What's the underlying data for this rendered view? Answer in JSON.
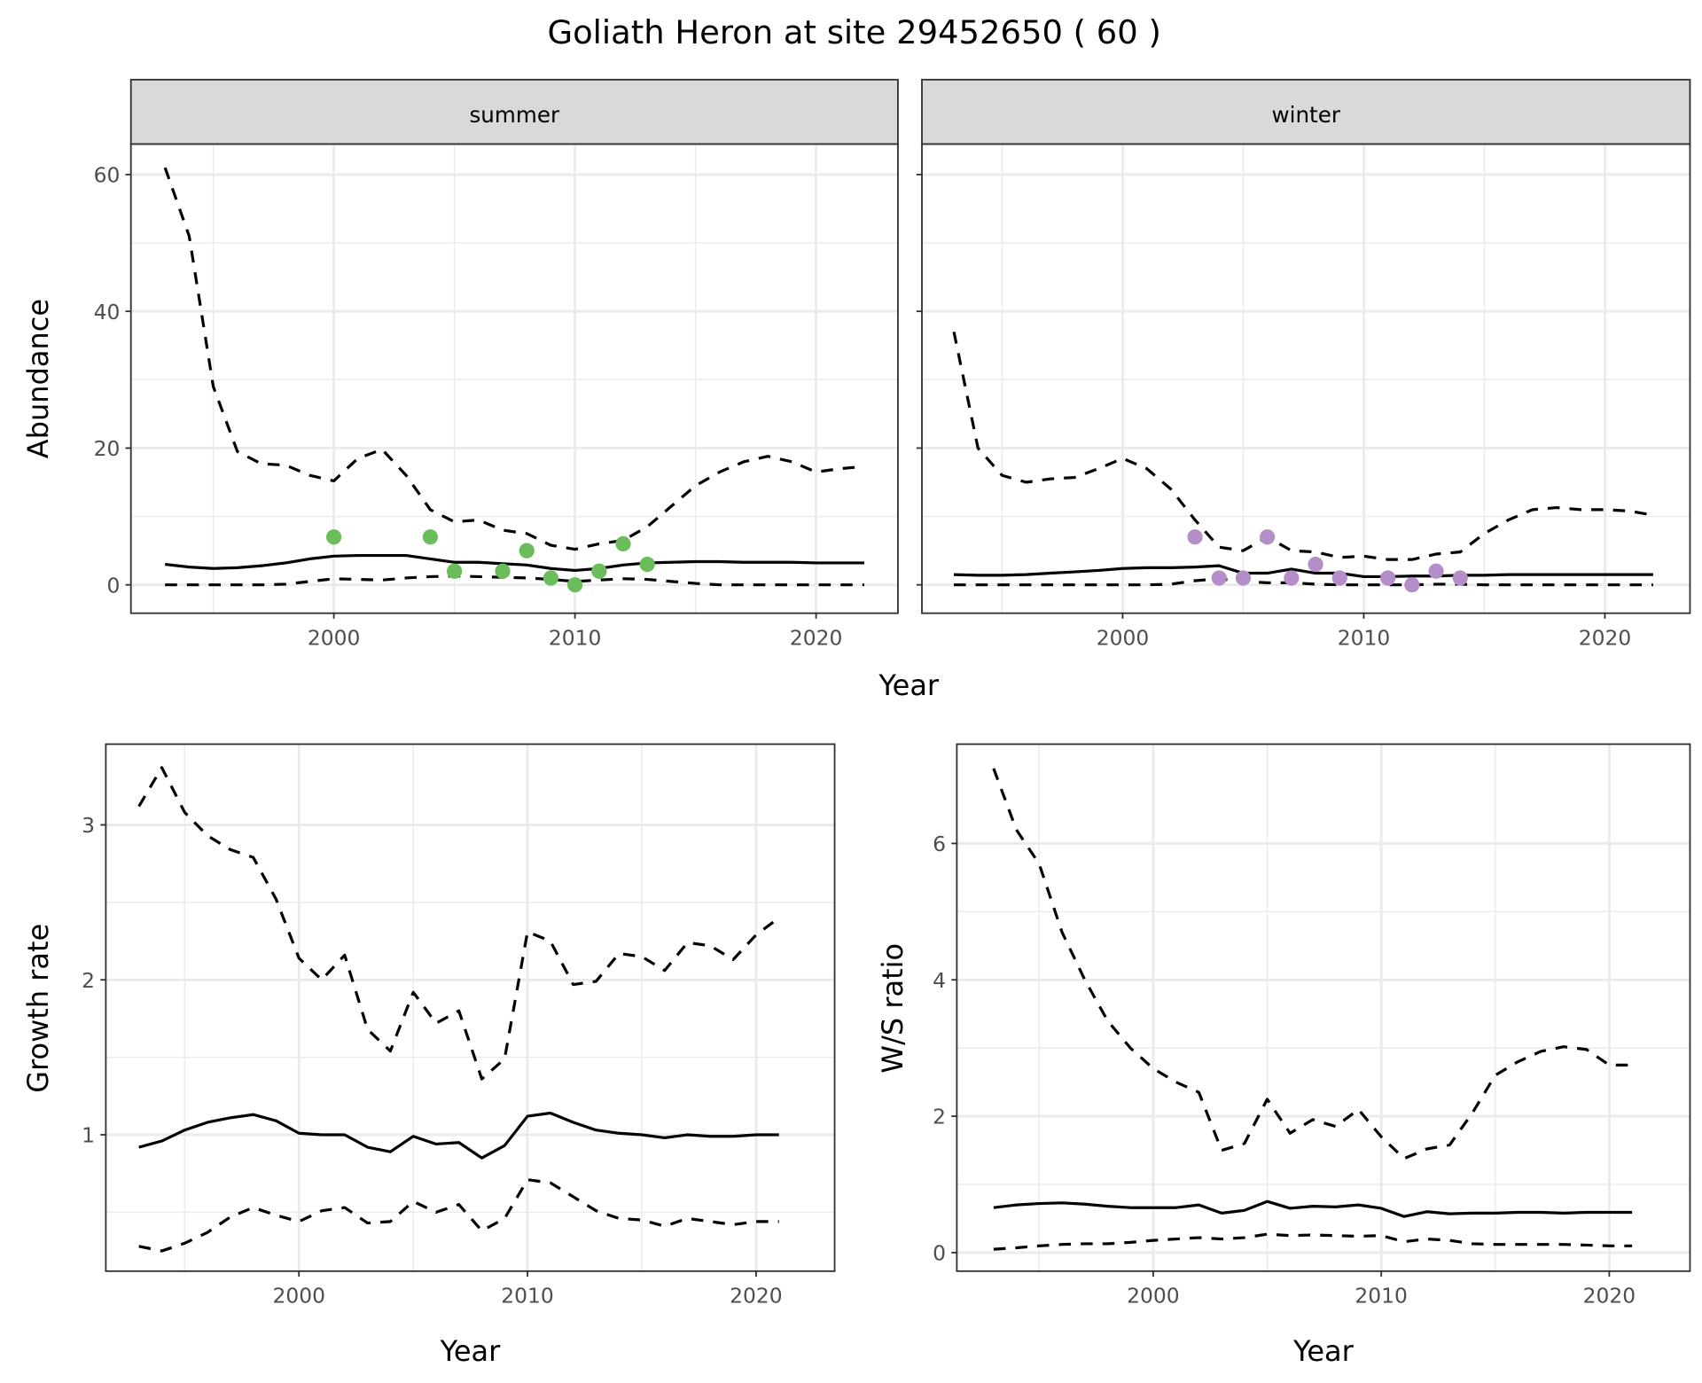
{
  "title": "Goliath Heron at site 29452650 ( 60 )",
  "colors": {
    "summer_points": "#6abd5a",
    "winter_points": "#b48ec8",
    "lines": "#000000",
    "grid": "#ebebeb",
    "strip_bg": "#d9d9d9"
  },
  "chart_data": [
    {
      "type": "line",
      "panel": "summer",
      "strip_label": "summer",
      "xlabel": "Year",
      "ylabel": "Abundance",
      "ylim": [
        0,
        60
      ],
      "xticks": [
        "2000",
        "2010",
        "2020"
      ],
      "yticks": [
        "0",
        "20",
        "40",
        "60"
      ],
      "grid": true,
      "x": [
        1993,
        1994,
        1995,
        1996,
        1997,
        1998,
        1999,
        2000,
        2001,
        2002,
        2003,
        2004,
        2005,
        2006,
        2007,
        2008,
        2009,
        2010,
        2011,
        2012,
        2013,
        2014,
        2015,
        2016,
        2017,
        2018,
        2019,
        2020,
        2021,
        2022
      ],
      "series": [
        {
          "style": "dashed",
          "values": [
            61,
            51,
            29,
            19.5,
            17.7,
            17.5,
            16,
            15.2,
            18.5,
            19.8,
            16,
            11,
            9.2,
            9.5,
            8,
            7.5,
            5.8,
            5.2,
            6,
            6.5,
            8.5,
            11.5,
            14.5,
            16.5,
            18,
            18.8,
            18,
            16.5,
            17,
            17.3
          ]
        },
        {
          "style": "solid",
          "values": [
            3,
            2.6,
            2.4,
            2.5,
            2.8,
            3.2,
            3.8,
            4.2,
            4.3,
            4.3,
            4.3,
            3.8,
            3.3,
            3.3,
            3.1,
            2.9,
            2.4,
            2.1,
            2.4,
            2.9,
            3.2,
            3.3,
            3.4,
            3.4,
            3.3,
            3.3,
            3.3,
            3.2,
            3.2,
            3.2
          ]
        },
        {
          "style": "dashed",
          "values": [
            0,
            0,
            0,
            0,
            0,
            0.1,
            0.5,
            0.9,
            0.8,
            0.7,
            1,
            1.2,
            1.3,
            1.2,
            1.1,
            1,
            0.8,
            0.5,
            0.7,
            0.9,
            0.8,
            0.5,
            0.2,
            0,
            0,
            0,
            0,
            0,
            0,
            0
          ]
        }
      ],
      "points": {
        "x": [
          2000,
          2004,
          2005,
          2007,
          2008,
          2009,
          2010,
          2011,
          2012,
          2013
        ],
        "y": [
          7,
          7,
          2,
          2,
          5,
          1,
          0,
          2,
          6,
          3
        ]
      }
    },
    {
      "type": "line",
      "panel": "winter",
      "strip_label": "winter",
      "xlabel": "Year",
      "ylabel": "Abundance",
      "ylim": [
        0,
        60
      ],
      "xticks": [
        "2000",
        "2010",
        "2020"
      ],
      "grid": true,
      "x": [
        1993,
        1994,
        1995,
        1996,
        1997,
        1998,
        1999,
        2000,
        2001,
        2002,
        2003,
        2004,
        2005,
        2006,
        2007,
        2008,
        2009,
        2010,
        2011,
        2012,
        2013,
        2014,
        2015,
        2016,
        2017,
        2018,
        2019,
        2020,
        2021,
        2022
      ],
      "series": [
        {
          "style": "dashed",
          "values": [
            37,
            20,
            16,
            15,
            15.5,
            15.7,
            17,
            18.5,
            17,
            14,
            9.5,
            5.5,
            5,
            7,
            5,
            4.8,
            4,
            4.2,
            3.7,
            3.7,
            4.5,
            4.8,
            7.5,
            9.5,
            11,
            11.3,
            11,
            11,
            10.8,
            10.2
          ]
        },
        {
          "style": "solid",
          "values": [
            1.5,
            1.4,
            1.4,
            1.5,
            1.7,
            1.9,
            2.1,
            2.4,
            2.5,
            2.5,
            2.6,
            2.8,
            1.7,
            1.7,
            2.3,
            1.7,
            1.7,
            1.2,
            1.2,
            1.3,
            1.3,
            1.4,
            1.4,
            1.5,
            1.5,
            1.5,
            1.5,
            1.5,
            1.5,
            1.5
          ]
        },
        {
          "style": "dashed",
          "values": [
            0,
            0,
            0,
            0,
            0,
            0,
            0,
            0,
            0,
            0.1,
            0.6,
            0.9,
            0.5,
            0.3,
            0.3,
            0.1,
            0,
            0,
            0,
            0,
            0.1,
            0.1,
            0,
            0,
            0,
            0,
            0,
            0,
            0,
            0
          ]
        }
      ],
      "points": {
        "x": [
          2003,
          2004,
          2005,
          2006,
          2007,
          2008,
          2009,
          2011,
          2012,
          2013,
          2014
        ],
        "y": [
          7,
          1,
          1,
          7,
          1,
          3,
          1,
          1,
          0,
          2,
          1
        ]
      }
    },
    {
      "type": "line",
      "panel": "growth",
      "xlabel": "Year",
      "ylabel": "Growth rate",
      "xticks": [
        "2000",
        "2010",
        "2020"
      ],
      "yticks": [
        "1",
        "2",
        "3"
      ],
      "grid": true,
      "x": [
        1993,
        1994,
        1995,
        1996,
        1997,
        1998,
        1999,
        2000,
        2001,
        2002,
        2003,
        2004,
        2005,
        2006,
        2007,
        2008,
        2009,
        2010,
        2011,
        2012,
        2013,
        2014,
        2015,
        2016,
        2017,
        2018,
        2019,
        2020,
        2021
      ],
      "series": [
        {
          "style": "dashed",
          "values": [
            3.12,
            3.37,
            3.08,
            2.93,
            2.84,
            2.79,
            2.52,
            2.14,
            2.0,
            2.16,
            1.68,
            1.54,
            1.92,
            1.72,
            1.8,
            1.36,
            1.49,
            2.31,
            2.25,
            1.97,
            1.99,
            2.17,
            2.15,
            2.06,
            2.24,
            2.22,
            2.13,
            2.29,
            2.4
          ]
        },
        {
          "style": "solid",
          "values": [
            0.92,
            0.96,
            1.03,
            1.08,
            1.11,
            1.13,
            1.09,
            1.01,
            1.0,
            1.0,
            0.92,
            0.89,
            0.99,
            0.94,
            0.95,
            0.85,
            0.93,
            1.12,
            1.14,
            1.08,
            1.03,
            1.01,
            1.0,
            0.98,
            1.0,
            0.99,
            0.99,
            1.0,
            1.0
          ]
        },
        {
          "style": "dashed",
          "values": [
            0.28,
            0.25,
            0.3,
            0.37,
            0.47,
            0.53,
            0.48,
            0.44,
            0.51,
            0.53,
            0.43,
            0.44,
            0.57,
            0.5,
            0.55,
            0.38,
            0.46,
            0.71,
            0.69,
            0.6,
            0.51,
            0.46,
            0.45,
            0.41,
            0.46,
            0.44,
            0.42,
            0.44,
            0.44
          ]
        }
      ]
    },
    {
      "type": "line",
      "panel": "ratio",
      "xlabel": "Year",
      "ylabel": "W/S ratio",
      "xticks": [
        "2000",
        "2010",
        "2020"
      ],
      "yticks": [
        "0",
        "2",
        "4",
        "6"
      ],
      "grid": true,
      "x": [
        1993,
        1994,
        1995,
        1996,
        1997,
        1998,
        1999,
        2000,
        2001,
        2002,
        2003,
        2004,
        2005,
        2006,
        2007,
        2008,
        2009,
        2010,
        2011,
        2012,
        2013,
        2014,
        2015,
        2016,
        2017,
        2018,
        2019,
        2020,
        2021
      ],
      "series": [
        {
          "style": "dashed",
          "values": [
            7.1,
            6.2,
            5.7,
            4.7,
            4.0,
            3.4,
            3.0,
            2.7,
            2.5,
            2.35,
            1.5,
            1.6,
            2.25,
            1.75,
            1.95,
            1.85,
            2.1,
            1.7,
            1.38,
            1.52,
            1.58,
            2.05,
            2.6,
            2.8,
            2.95,
            3.02,
            2.98,
            2.75,
            2.75
          ]
        },
        {
          "style": "solid",
          "values": [
            0.66,
            0.7,
            0.72,
            0.73,
            0.71,
            0.68,
            0.66,
            0.66,
            0.66,
            0.7,
            0.58,
            0.62,
            0.75,
            0.65,
            0.68,
            0.67,
            0.7,
            0.65,
            0.53,
            0.6,
            0.57,
            0.58,
            0.58,
            0.59,
            0.59,
            0.58,
            0.59,
            0.59,
            0.59
          ]
        },
        {
          "style": "dashed",
          "values": [
            0.05,
            0.07,
            0.1,
            0.12,
            0.13,
            0.13,
            0.15,
            0.18,
            0.2,
            0.22,
            0.2,
            0.22,
            0.27,
            0.25,
            0.26,
            0.25,
            0.24,
            0.25,
            0.16,
            0.2,
            0.18,
            0.13,
            0.12,
            0.12,
            0.12,
            0.12,
            0.11,
            0.1,
            0.1
          ]
        }
      ]
    }
  ]
}
